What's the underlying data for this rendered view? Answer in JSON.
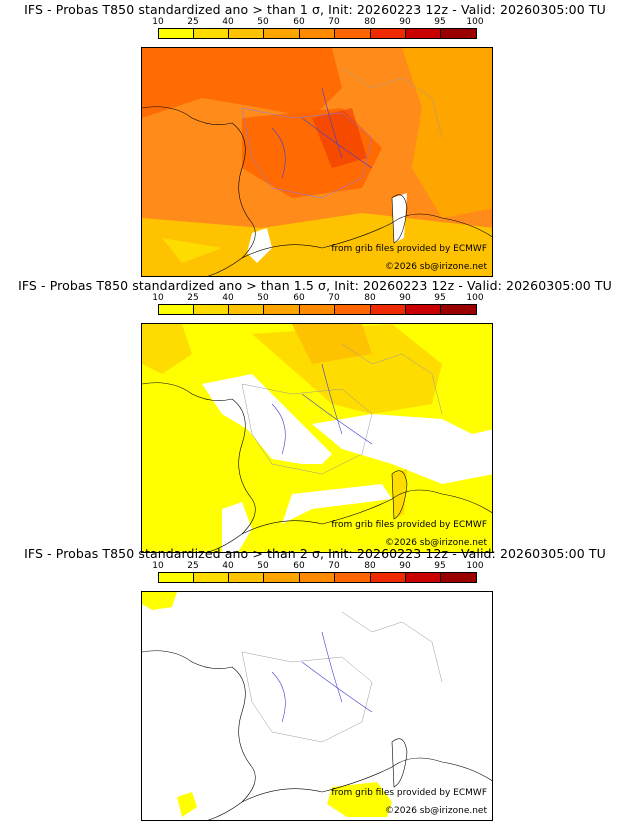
{
  "colorbar": {
    "labels": [
      "10",
      "25",
      "40",
      "50",
      "60",
      "70",
      "80",
      "90",
      "95",
      "100"
    ],
    "colors": [
      "#ffff00",
      "#ffdc00",
      "#ffc200",
      "#ffa500",
      "#ff8a00",
      "#ff6600",
      "#ee2a00",
      "#c80000",
      "#9b0000",
      "#640000"
    ]
  },
  "panels": [
    {
      "title": "IFS - Probas T850  standardized ano > than 1 σ, Init: 20260223 12z - Valid: 20260305:00 TU",
      "base_color": "#ff8c1a"
    },
    {
      "title": "IFS - Probas T850  standardized ano > than 1.5 σ, Init: 20260223 12z - Valid: 20260305:00 TU",
      "base_color": "#ffff00"
    },
    {
      "title": "IFS - Probas T850  standardized ano > than 2 σ, Init: 20260223 12z - Valid: 20260305:00 TU",
      "base_color": "#ffffff"
    }
  ],
  "credits": {
    "source": "from grib files provided by ECMWF",
    "copyright": "©2026 sb@irizone.net"
  }
}
